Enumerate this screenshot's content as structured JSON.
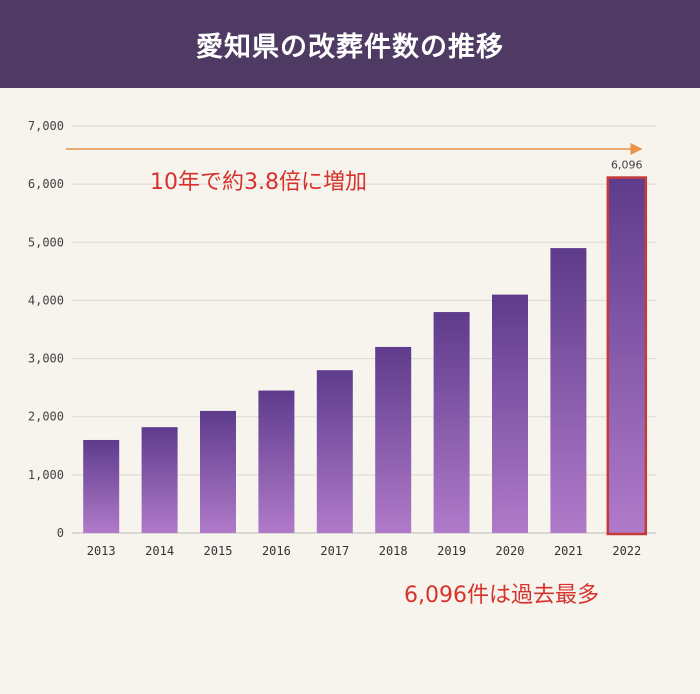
{
  "chart_data": {
    "type": "bar",
    "title": "愛知県の改葬件数の推移",
    "categories": [
      "2013",
      "2014",
      "2015",
      "2016",
      "2017",
      "2018",
      "2019",
      "2020",
      "2021",
      "2022"
    ],
    "values": [
      1600,
      1820,
      2100,
      2450,
      2800,
      3200,
      3800,
      4100,
      4900,
      6096
    ],
    "ylim": [
      0,
      7000
    ],
    "yticks": [
      0,
      1000,
      2000,
      3000,
      4000,
      5000,
      6000,
      7000
    ],
    "ytick_labels": [
      "0",
      "1,000",
      "2,000",
      "3,000",
      "4,000",
      "5,000",
      "6,000",
      "7,000"
    ],
    "grid": true,
    "data_labels": [
      {
        "category": "2022",
        "text": "6,096"
      }
    ],
    "highlight_category": "2022",
    "annotations": {
      "trend": "10年で約3.8倍に増加",
      "record": "6,096件は過去最多"
    },
    "colors": {
      "bar_top": "#5e3b8c",
      "bar_bottom": "#b07ac9",
      "highlight_border": "#c43a3a",
      "annotation_text": "#d8322c",
      "arrow": "#e8924a",
      "header_bg": "#4e3a63"
    }
  }
}
